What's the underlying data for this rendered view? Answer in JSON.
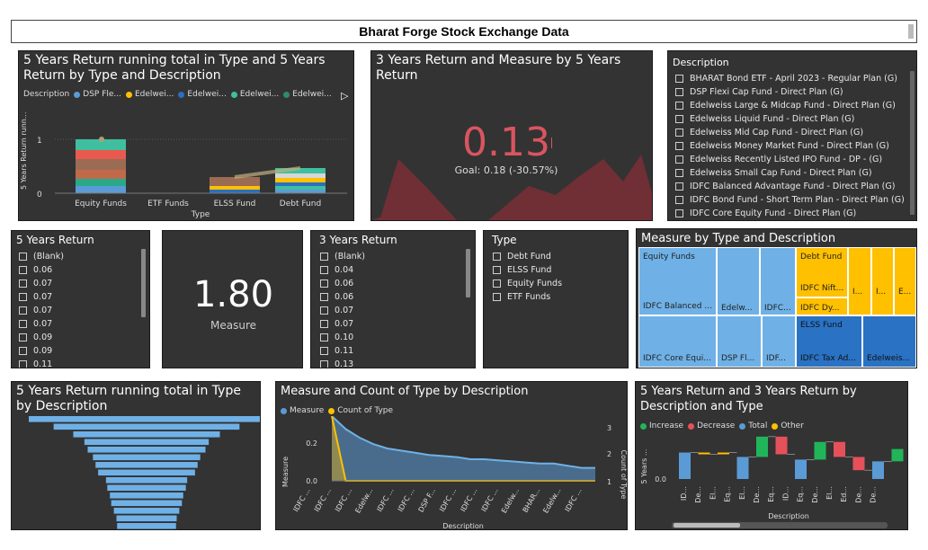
{
  "title": "Bharat Forge Stock Exchange Data",
  "colors": {
    "panel": "#333333",
    "blue": "#5b9bd5",
    "orange": "#ffc000",
    "green": "#21b55a",
    "red": "#e5515a",
    "accent": "#d95560"
  },
  "p1": {
    "title": "5 Years Return running total in Type and 5 Years Return by Type and Description",
    "legend_label": "Description",
    "legend": [
      "DSP Fle...",
      "Edelwei...",
      "Edelwei...",
      "Edelwei...",
      "Edelwei..."
    ],
    "legend_colors": [
      "#5b9bd5",
      "#ffc000",
      "#2a6fc1",
      "#3fbf9f",
      "#2e8b6e"
    ],
    "ylabel": "5 Years Return runn...",
    "yticks": [
      "1",
      "0"
    ],
    "xlabel": "Type",
    "chart_data": {
      "type": "bar",
      "categories": [
        "Equity Funds",
        "ETF Funds",
        "ELSS Fund",
        "Debt Fund"
      ],
      "values": [
        1.0,
        0.0,
        0.3,
        0.45
      ],
      "ylim": [
        0,
        1.2
      ]
    }
  },
  "p2": {
    "title": "3 Years Return and Measure by 5 Years Return",
    "kpi": "0.13",
    "goal": "Goal: 0.18 (-30.57%)"
  },
  "p3": {
    "title": "Description",
    "items": [
      "BHARAT Bond ETF - April 2023 - Regular Plan (G)",
      "DSP Flexi Cap Fund - Direct Plan (G)",
      "Edelweiss Large & Midcap Fund - Direct Plan (G)",
      "Edelweiss Liquid Fund - Direct Plan (G)",
      "Edelweiss Mid Cap Fund - Direct Plan (G)",
      "Edelweiss Money Market Fund - Direct Plan (G)",
      "Edelweiss Recently Listed IPO Fund - DP - (G)",
      "Edelweiss Small Cap Fund - Direct Plan (G)",
      "IDFC Balanced Advantage Fund - Direct Plan (G)",
      "IDFC Bond Fund - Short Term Plan - Direct Plan (G)",
      "IDFC Core Equity Fund - Direct Plan (G)"
    ]
  },
  "p4": {
    "title": "5 Years Return",
    "items": [
      "(Blank)",
      "0.06",
      "0.07",
      "0.07",
      "0.07",
      "0.07",
      "0.09",
      "0.09",
      "0.11"
    ]
  },
  "p5": {
    "value": "1.80",
    "label": "Measure"
  },
  "p6": {
    "title": "3 Years Return",
    "items": [
      "(Blank)",
      "0.04",
      "0.06",
      "0.06",
      "0.07",
      "0.07",
      "0.10",
      "0.11",
      "0.13"
    ]
  },
  "p7": {
    "title": "Type",
    "items": [
      "Debt Fund",
      "ELSS Fund",
      "Equity Funds",
      "ETF Funds"
    ]
  },
  "p8": {
    "title": "Measure by Type and Description",
    "groups": {
      "equity": "Equity Funds",
      "debt": "Debt Fund",
      "elss": "ELSS Fund"
    },
    "tiles": [
      "IDFC Balanced ...",
      "Edelw...",
      "IDFC...",
      "IDFC Core Equi...",
      "DSP Fl...",
      "IDF...",
      "IDFC Nift...",
      "I...",
      "I...",
      "E...",
      "IDFC Dy...",
      "IDFC Tax Ad...",
      "Edelweis..."
    ]
  },
  "p9": {
    "title": "5 Years Return running total in Type by Description",
    "chart_data": {
      "type": "bar",
      "orientation": "horizontal",
      "values": [
        1.8,
        1.42,
        1.12,
        0.95,
        0.9,
        0.82,
        0.78,
        0.74,
        0.62,
        0.6,
        0.56,
        0.54,
        0.5,
        0.46,
        0.45
      ]
    }
  },
  "p10": {
    "title": "Measure and Count of Type by Description",
    "legend": [
      "Measure",
      "Count of Type"
    ],
    "ylabel": "Measure",
    "y2label": "Count of Type",
    "xlabel": "Description",
    "yticks": [
      "0.2",
      "0.0"
    ],
    "y2ticks": [
      "3",
      "2",
      "1"
    ],
    "xticks": [
      "IDFC ...",
      "IDFC ...",
      "IDFC ...",
      "Edelw...",
      "IDFC ...",
      "IDFC ...",
      "DSP F...",
      "IDFC ...",
      "IDFC ...",
      "IDFC ...",
      "Edelw...",
      "BHAR...",
      "Edelw...",
      "IDFC ..."
    ],
    "chart_data": {
      "type": "area",
      "measure": [
        0.3,
        0.24,
        0.2,
        0.17,
        0.15,
        0.14,
        0.13,
        0.12,
        0.115,
        0.11,
        0.1,
        0.1,
        0.095,
        0.09,
        0.085,
        0.08,
        0.08,
        0.07,
        0.06,
        0.06
      ],
      "count": [
        3,
        1,
        1,
        1,
        1,
        1,
        1,
        1,
        1,
        1,
        1,
        1,
        1,
        1,
        1,
        1,
        1,
        1,
        1,
        1
      ],
      "ylim": [
        0,
        0.3
      ],
      "y2lim": [
        1,
        3
      ]
    }
  },
  "p11": {
    "title": "5 Years Return and 3 Years Return by Description and Type",
    "legend": [
      "Increase",
      "Decrease",
      "Total",
      "Other"
    ],
    "ylabel": "5 Years ...",
    "ytick": "0.0",
    "xlabel": "Description",
    "xticks": [
      "ID...",
      "De...",
      "El...",
      "Eq...",
      "El...",
      "De...",
      "Eq...",
      "ID...",
      "Eq...",
      "De...",
      "El...",
      "Ed...",
      "De...",
      "De..."
    ],
    "chart_data": {
      "type": "waterfall",
      "bars": [
        {
          "kind": "total",
          "start": 0,
          "end": 0.3
        },
        {
          "kind": "other",
          "start": 0.3,
          "end": 0.28
        },
        {
          "kind": "other",
          "start": 0.28,
          "end": 0.3
        },
        {
          "kind": "total",
          "start": 0,
          "end": 0.25
        },
        {
          "kind": "increase",
          "start": 0.25,
          "end": 0.48
        },
        {
          "kind": "decrease",
          "start": 0.48,
          "end": 0.28
        },
        {
          "kind": "total",
          "start": 0,
          "end": 0.22
        },
        {
          "kind": "increase",
          "start": 0.22,
          "end": 0.42
        },
        {
          "kind": "decrease",
          "start": 0.42,
          "end": 0.25
        },
        {
          "kind": "decrease",
          "start": 0.25,
          "end": 0.1
        },
        {
          "kind": "total",
          "start": 0,
          "end": 0.2
        },
        {
          "kind": "increase",
          "start": 0.2,
          "end": 0.34
        }
      ],
      "ylim": [
        0,
        0.55
      ]
    }
  }
}
